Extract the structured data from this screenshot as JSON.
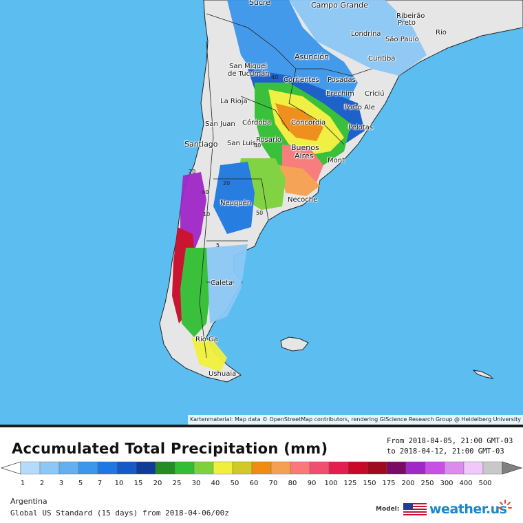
{
  "map": {
    "attribution": "Kartenmaterial: Map data © OpenStreetMap contributors, rendering GIScience Research Group @ Heidelberg University",
    "colors": {
      "ocean": "#5bbdf0",
      "land": "#e8e8e8",
      "borders": "#333333"
    },
    "cities": [
      {
        "name": "Sucre",
        "style": "big"
      },
      {
        "name": "Campo Grande",
        "style": "big"
      },
      {
        "name": "Ribeirão",
        "style": "normal"
      },
      {
        "name": "Preto",
        "style": "normal"
      },
      {
        "name": "Londrina",
        "style": "normal"
      },
      {
        "name": "São Paulo",
        "style": "normal"
      },
      {
        "name": "Rio",
        "style": "normal"
      },
      {
        "name": "Asunción",
        "style": "big"
      },
      {
        "name": "Curitiba",
        "style": "normal"
      },
      {
        "name": "San Miguel",
        "style": "normal"
      },
      {
        "name": "de Tucumán",
        "style": "normal"
      },
      {
        "name": "Corrientes",
        "style": "normal"
      },
      {
        "name": "Posadas",
        "style": "normal"
      },
      {
        "name": "Erechim",
        "style": "normal"
      },
      {
        "name": "Criciú",
        "style": "normal"
      },
      {
        "name": "La Rioja",
        "style": "normal"
      },
      {
        "name": "Porto Ale",
        "style": "normal"
      },
      {
        "name": "San Juan",
        "style": "normal"
      },
      {
        "name": "Córdoba",
        "style": "normal"
      },
      {
        "name": "Concordia",
        "style": "normal"
      },
      {
        "name": "Pelotas",
        "style": "normal"
      },
      {
        "name": "Rosario",
        "style": "normal"
      },
      {
        "name": "Santiago",
        "style": "big"
      },
      {
        "name": "San Luis",
        "style": "normal"
      },
      {
        "name": "Buenos",
        "style": "big"
      },
      {
        "name": "Aires",
        "style": "big"
      },
      {
        "name": "Mont",
        "style": "normal"
      },
      {
        "name": "Neuquén",
        "style": "normal"
      },
      {
        "name": "Necoche",
        "style": "normal"
      },
      {
        "name": "Caleta",
        "style": "normal"
      },
      {
        "name": "Río Ga",
        "style": "normal"
      },
      {
        "name": "Ushuaia",
        "style": "normal"
      }
    ],
    "contour_labels": [
      "40",
      "20",
      "40",
      "10",
      "5",
      "50",
      "40",
      "20"
    ]
  },
  "legend": {
    "title": "Accumulated Total Precipitation (mm)",
    "period_from": "From 2018-04-05, 21:00 GMT-03",
    "period_to": "to 2018-04-12, 21:00 GMT-03",
    "scale": [
      {
        "value": "1",
        "color": "#b4dcfa"
      },
      {
        "value": "2",
        "color": "#8cc8f5"
      },
      {
        "value": "3",
        "color": "#64aff0"
      },
      {
        "value": "5",
        "color": "#3c96eb"
      },
      {
        "value": "7",
        "color": "#1e78e1"
      },
      {
        "value": "10",
        "color": "#145ac8"
      },
      {
        "value": "15",
        "color": "#0f3c96"
      },
      {
        "value": "20",
        "color": "#238c23"
      },
      {
        "value": "25",
        "color": "#32be32"
      },
      {
        "value": "30",
        "color": "#7dd23c"
      },
      {
        "value": "40",
        "color": "#f0f03c"
      },
      {
        "value": "50",
        "color": "#d2c828"
      },
      {
        "value": "60",
        "color": "#f08c14"
      },
      {
        "value": "70",
        "color": "#f5a050"
      },
      {
        "value": "80",
        "color": "#fa7878"
      },
      {
        "value": "90",
        "color": "#f0506e"
      },
      {
        "value": "100",
        "color": "#e61e50"
      },
      {
        "value": "125",
        "color": "#c80a28"
      },
      {
        "value": "150",
        "color": "#a00a1e"
      },
      {
        "value": "175",
        "color": "#7a0a64"
      },
      {
        "value": "200",
        "color": "#a028c8"
      },
      {
        "value": "250",
        "color": "#c850e6"
      },
      {
        "value": "300",
        "color": "#dc8cf0"
      },
      {
        "value": "400",
        "color": "#f0c8fa"
      },
      {
        "value": "500",
        "color": "#c8c8c8"
      }
    ],
    "region": "Argentina",
    "model_run": "Global US Standard (15 days) from 2018-04-06/00z",
    "model_label": "Model:",
    "brand": "weather.us"
  }
}
